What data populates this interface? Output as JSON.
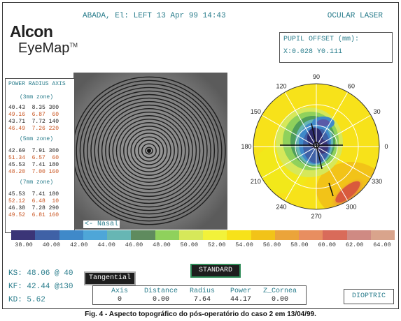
{
  "header": {
    "patient_line": "ABADA, El: LEFT 13 Apr 99 14:43",
    "device": "OCULAR LASER"
  },
  "logo": {
    "line1": "Alcon",
    "line2": "EyeMap",
    "tm": "TM"
  },
  "pupil_offset": {
    "title": "PUPIL OFFSET (mm):",
    "value": "X:0.028 Y0.111"
  },
  "power_radius_axis": {
    "title": "POWER RADIUS AXIS",
    "zones": [
      {
        "label": "(3mm zone)",
        "rows": [
          {
            "text": "40.43  8.35 300",
            "highlight": false
          },
          {
            "text": "49.16  6.87  60",
            "highlight": true
          },
          {
            "text": "43.71  7.72 140",
            "highlight": false
          },
          {
            "text": "46.49  7.26 220",
            "highlight": true
          }
        ]
      },
      {
        "label": "(5mm zone)",
        "rows": [
          {
            "text": "42.69  7.91 300",
            "highlight": false
          },
          {
            "text": "51.34  6.57  60",
            "highlight": true
          },
          {
            "text": "45.53  7.41 180",
            "highlight": false
          },
          {
            "text": "48.20  7.00 160",
            "highlight": true
          }
        ]
      },
      {
        "label": "(7mm zone)",
        "rows": [
          {
            "text": "45.53  7.41 180",
            "highlight": false
          },
          {
            "text": "52.12  6.48  10",
            "highlight": true
          },
          {
            "text": "46.38  7.28 290",
            "highlight": false
          },
          {
            "text": "49.52  6.81 160",
            "highlight": true
          }
        ]
      }
    ]
  },
  "placido": {
    "nasal_label": "<- Nasal"
  },
  "scale": {
    "colors": [
      "#3b3577",
      "#3f61a6",
      "#3f89c9",
      "#4ea6d8",
      "#67b6b4",
      "#5f8b5e",
      "#8fd15c",
      "#d6e85a",
      "#f2f23a",
      "#f7e21a",
      "#f2c318",
      "#eba43a",
      "#e88e60",
      "#d96b5a",
      "#cf8a83",
      "#d9a48c"
    ],
    "labels": [
      "38.00",
      "40.00",
      "42.00",
      "44.00",
      "46.00",
      "48.00",
      "50.00",
      "52.00",
      "54.00",
      "56.00",
      "58.00",
      "60.00",
      "62.00",
      "64.00"
    ]
  },
  "topo_angles": [
    "90",
    "60",
    "30",
    "0",
    "330",
    "300",
    "270",
    "240",
    "210",
    "180",
    "150",
    "120"
  ],
  "keratometry": {
    "ks": "KS: 48.06 @ 40",
    "kf": "KF: 42.44 @130",
    "kd": "KD: 5.62"
  },
  "buttons": {
    "tangential": "Tangential",
    "standard": "STANDARD",
    "dioptric": "DIOPTRIC"
  },
  "cursor_table": {
    "headers": [
      "Axis",
      "Distance",
      "Radius",
      "Power",
      "Z_Cornea"
    ],
    "values": [
      "0",
      "0.00",
      "7.64",
      "44.17",
      "0.00"
    ]
  },
  "caption": "Fig. 4 - Aspecto topográfico do pós-operatório do caso 2 em 13/04/99."
}
